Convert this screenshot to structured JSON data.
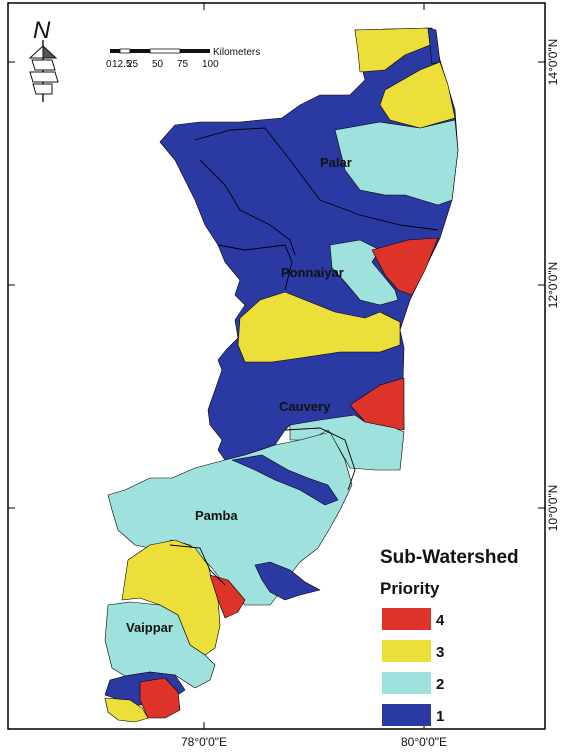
{
  "colors": {
    "priority_1": "#2b3aa3",
    "priority_2": "#9fe2dd",
    "priority_3": "#ecdf3a",
    "priority_4": "#dd3328",
    "boundary": "#000000",
    "background": "#ffffff"
  },
  "north_arrow": {
    "letter": "N",
    "icon": "north-arrow-icon"
  },
  "scale_bar": {
    "unit": "Kilometers",
    "ticks": [
      "0",
      "12.5",
      "25",
      "50",
      "75",
      "100"
    ]
  },
  "coordinates": {
    "lat_right": [
      "14°0'0\"N",
      "12°0'0\"N",
      "10°0'0\"N"
    ],
    "lon_bottom": [
      "78°0'0\"E",
      "80°0'0\"E"
    ]
  },
  "basins": [
    "Palar",
    "Ponnaiyar",
    "Cauvery",
    "Pamba",
    "Vaippar"
  ],
  "legend": {
    "title": "Sub-Watershed",
    "subtitle": "Priority",
    "items": [
      {
        "label": "4",
        "color": "#dd3328"
      },
      {
        "label": "3",
        "color": "#ecdf3a"
      },
      {
        "label": "2",
        "color": "#9fe2dd"
      },
      {
        "label": "1",
        "color": "#2b3aa3"
      }
    ]
  }
}
